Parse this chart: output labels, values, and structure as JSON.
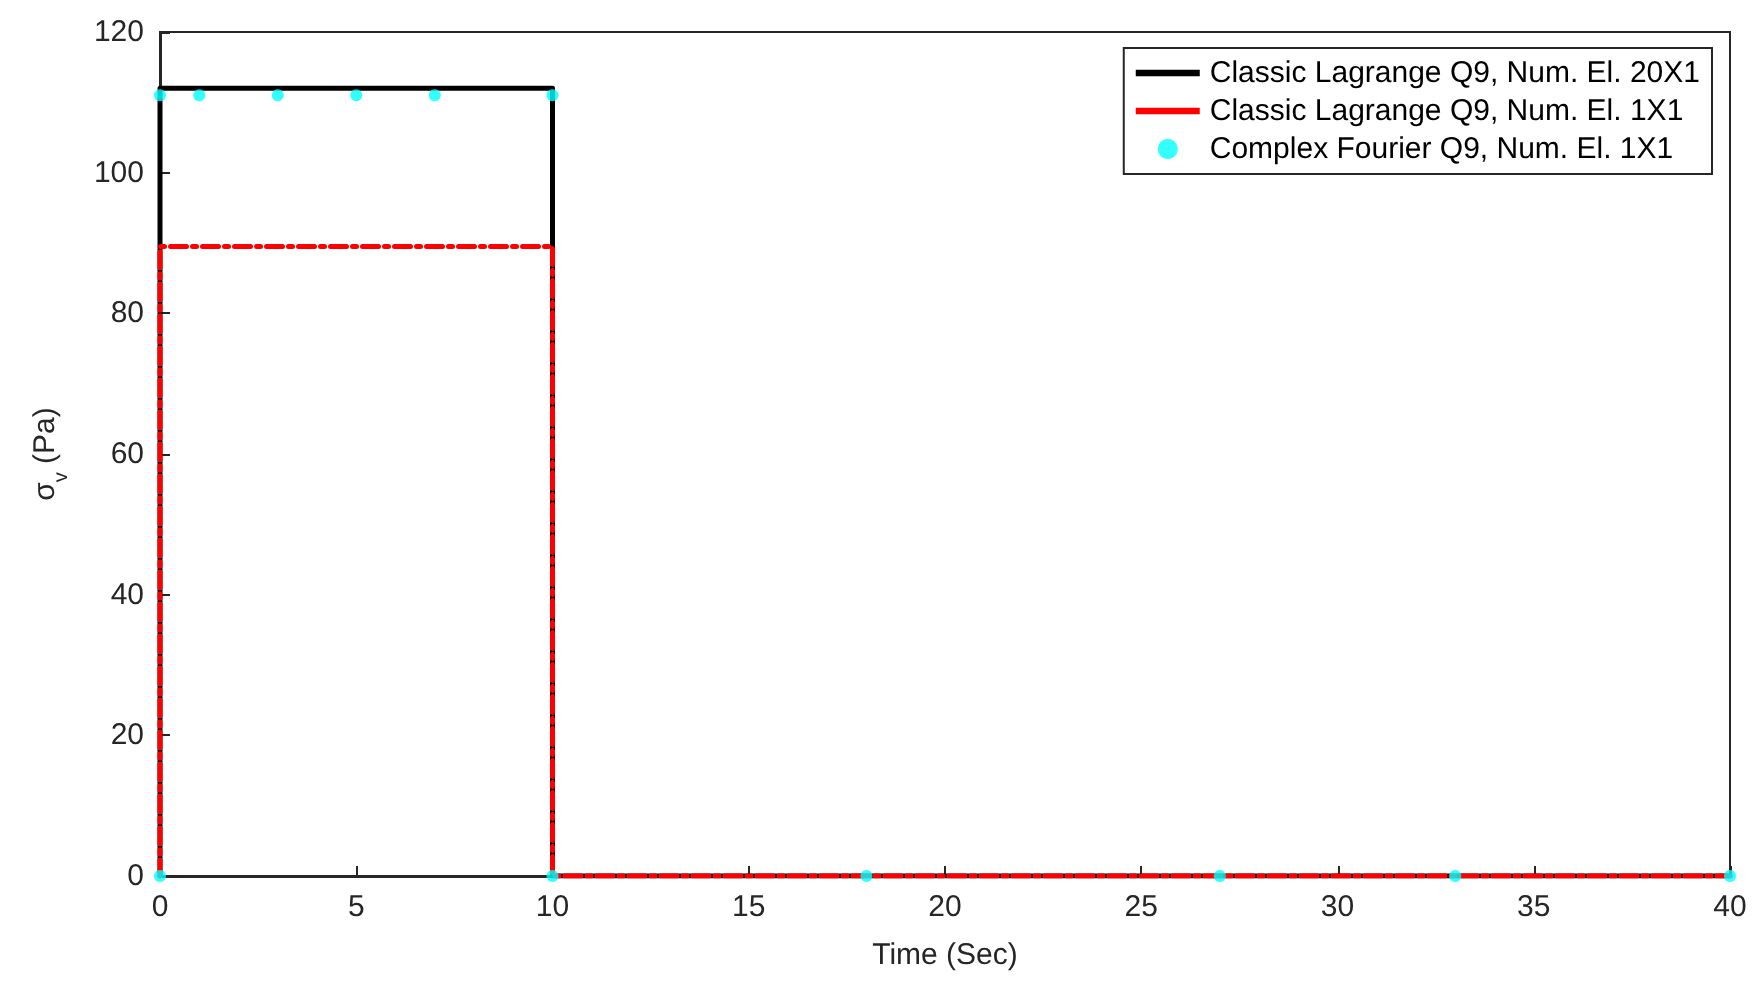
{
  "chart_data": {
    "type": "line",
    "xlabel": "Time (Sec)",
    "ylabel": "σ$_{v}$ (Pa)",
    "xlim": [
      0,
      40
    ],
    "xticks": [
      0,
      5,
      10,
      15,
      20,
      25,
      30,
      35,
      40
    ],
    "ylim": [
      0,
      120
    ],
    "yticks": [
      0,
      20,
      40,
      60,
      80,
      100,
      120
    ],
    "grid": false,
    "legend": "top right",
    "series": [
      {
        "name": "Classic Lagrange Q9, Num. El. 20X1",
        "color": "#000000",
        "line_style": "solid",
        "marker": "none",
        "x": [
          0,
          0,
          10,
          10,
          40
        ],
        "values": [
          0,
          112,
          112,
          0,
          0
        ]
      },
      {
        "name": "Classic Lagrange Q9, Num. El. 1X1",
        "color": "#ff0000",
        "line_style": "dashed",
        "marker": "none",
        "x": [
          0,
          0,
          10,
          10,
          40
        ],
        "values": [
          0,
          89.5,
          89.5,
          0,
          0
        ]
      },
      {
        "name": "Complex Fourier Q9, Num. El. 1X1",
        "type": "scatter",
        "color": "#00ffff",
        "marker": "circle",
        "x": [
          0,
          0,
          1,
          3,
          5,
          7,
          10,
          10,
          18,
          27,
          33,
          40
        ],
        "values": [
          0,
          111,
          111,
          111,
          111,
          111,
          111,
          0,
          0,
          0,
          0,
          0
        ]
      }
    ]
  }
}
